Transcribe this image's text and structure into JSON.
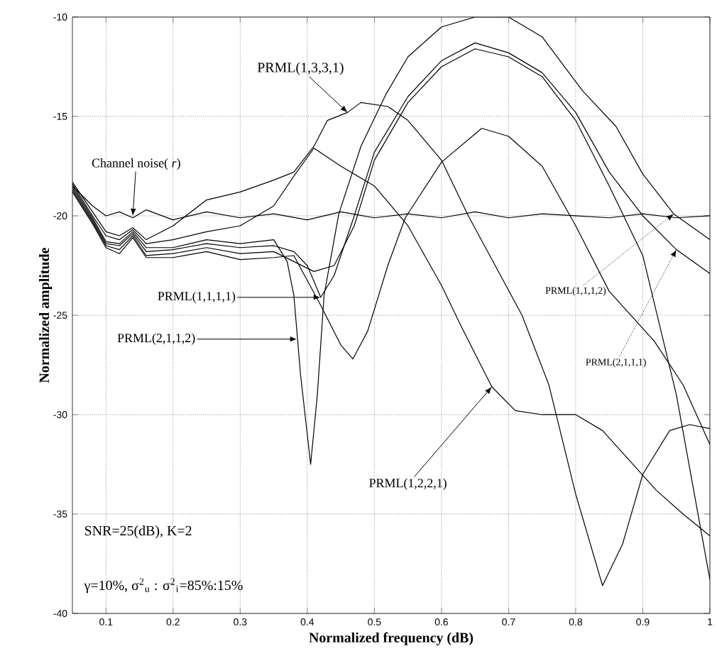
{
  "chart_data": {
    "type": "line",
    "xlabel": "Normalized frequency (dB)",
    "ylabel": "Normalized amplitude",
    "xlim": [
      0.05,
      1
    ],
    "ylim": [
      -40,
      -10
    ],
    "xticks": [
      0.1,
      0.2,
      0.3,
      0.4,
      0.5,
      0.6,
      0.7,
      0.8,
      0.9,
      1
    ],
    "yticks": [
      -40,
      -35,
      -30,
      -25,
      -20,
      -15,
      -10
    ],
    "grid": true,
    "series": [
      {
        "color": "#000000",
        "x": [
          0.05,
          0.08,
          0.1,
          0.12,
          0.14,
          0.16,
          0.2,
          0.25,
          0.3,
          0.35,
          0.4,
          0.45,
          0.5,
          0.55,
          0.6,
          0.65,
          0.7,
          0.75,
          0.8,
          0.85,
          0.9,
          0.95,
          1.0
        ],
        "values": [
          -18.5,
          -19.5,
          -20,
          -19.8,
          -20.1,
          -19.7,
          -20.2,
          -19.8,
          -20.1,
          -19.9,
          -20.2,
          -19.8,
          -20.1,
          -19.9,
          -20.1,
          -19.8,
          -20.1,
          -19.9,
          -20,
          -20.1,
          -19.9,
          -20.1,
          -20
        ]
      },
      {
        "color": "#000000",
        "x": [
          0.05,
          0.08,
          0.1,
          0.12,
          0.14,
          0.16,
          0.2,
          0.25,
          0.3,
          0.35,
          0.38,
          0.41,
          0.43,
          0.46,
          0.48,
          0.52,
          0.55,
          0.6,
          0.64,
          0.68,
          0.72,
          0.76,
          0.8,
          0.84,
          0.87,
          0.9,
          0.94,
          0.97,
          1.0
        ],
        "values": [
          -18.3,
          -19.8,
          -20.8,
          -21,
          -20.6,
          -21.2,
          -20.5,
          -19.2,
          -18.8,
          -18.2,
          -17.8,
          -16.5,
          -15.2,
          -14.8,
          -14.3,
          -14.5,
          -15.2,
          -17.2,
          -20,
          -22.5,
          -25,
          -28.5,
          -34,
          -38.6,
          -36.5,
          -33,
          -30.8,
          -30.5,
          -30.7
        ]
      },
      {
        "color": "#000000",
        "x": [
          0.05,
          0.08,
          0.1,
          0.12,
          0.14,
          0.16,
          0.2,
          0.25,
          0.3,
          0.35,
          0.38,
          0.41,
          0.45,
          0.5,
          0.55,
          0.6,
          0.63,
          0.675,
          0.71,
          0.75,
          0.8,
          0.84,
          0.88,
          0.92,
          0.96,
          1.0
        ],
        "values": [
          -18.4,
          -20,
          -21,
          -21.2,
          -20.7,
          -21.4,
          -21.2,
          -20.8,
          -20.5,
          -19.5,
          -18,
          -16.6,
          -17.5,
          -18.5,
          -20.5,
          -23.5,
          -25.6,
          -28.6,
          -29.8,
          -30,
          -30,
          -30.8,
          -32.3,
          -33.8,
          -35,
          -36.1
        ]
      },
      {
        "color": "#000000",
        "x": [
          0.05,
          0.08,
          0.1,
          0.12,
          0.14,
          0.16,
          0.2,
          0.25,
          0.3,
          0.35,
          0.37,
          0.38,
          0.39,
          0.405,
          0.415,
          0.425,
          0.447,
          0.48,
          0.517,
          0.55,
          0.6,
          0.65,
          0.7,
          0.75,
          0.81,
          0.86,
          0.9,
          0.946,
          1.0
        ],
        "values": [
          -18.5,
          -20.1,
          -21.3,
          -21.4,
          -20.8,
          -21.6,
          -21.6,
          -21.2,
          -21.4,
          -21.2,
          -22.3,
          -24,
          -28,
          -32.5,
          -29,
          -24,
          -19.9,
          -16.5,
          -13.9,
          -12,
          -10.5,
          -10,
          -10,
          -11,
          -13.7,
          -15.5,
          -17.9,
          -19.9,
          -21.2
        ]
      },
      {
        "color": "#000000",
        "x": [
          0.05,
          0.08,
          0.1,
          0.12,
          0.14,
          0.16,
          0.2,
          0.25,
          0.3,
          0.35,
          0.38,
          0.4,
          0.42,
          0.44,
          0.47,
          0.5,
          0.55,
          0.6,
          0.65,
          0.7,
          0.75,
          0.8,
          0.85,
          0.9,
          0.95,
          1.0
        ],
        "values": [
          -18.6,
          -20.2,
          -21.4,
          -21.5,
          -20.9,
          -21.8,
          -21.7,
          -21.4,
          -21.6,
          -21.5,
          -21.8,
          -22.5,
          -24.1,
          -23,
          -20,
          -16.8,
          -14,
          -12.2,
          -11.3,
          -11.8,
          -12.8,
          -14.8,
          -17.8,
          -20,
          -21.7,
          -22.9
        ]
      },
      {
        "color": "#000000",
        "x": [
          0.05,
          0.08,
          0.1,
          0.12,
          0.14,
          0.16,
          0.2,
          0.25,
          0.3,
          0.35,
          0.38,
          0.41,
          0.44,
          0.47,
          0.5,
          0.55,
          0.6,
          0.65,
          0.7,
          0.75,
          0.8,
          0.85,
          0.9,
          0.95,
          1.0
        ],
        "values": [
          -18.7,
          -20.3,
          -21.5,
          -21.7,
          -21,
          -22,
          -21.9,
          -21.6,
          -21.9,
          -21.8,
          -22.3,
          -22.8,
          -22.5,
          -20.5,
          -17.2,
          -14.3,
          -12.5,
          -11.6,
          -12,
          -13,
          -15.2,
          -18.5,
          -22,
          -29,
          -38.3
        ]
      },
      {
        "color": "#000000",
        "x": [
          0.05,
          0.08,
          0.1,
          0.12,
          0.14,
          0.16,
          0.2,
          0.25,
          0.3,
          0.35,
          0.38,
          0.42,
          0.45,
          0.468,
          0.49,
          0.52,
          0.546,
          0.6,
          0.66,
          0.7,
          0.75,
          0.8,
          0.85,
          0.917,
          0.96,
          1.0
        ],
        "values": [
          -18.8,
          -20.4,
          -21.6,
          -21.9,
          -21.1,
          -22.1,
          -22.1,
          -21.8,
          -22.2,
          -22.1,
          -22,
          -24.5,
          -26.5,
          -27.2,
          -25.8,
          -22.5,
          -20.1,
          -17.3,
          -15.6,
          -16,
          -17.5,
          -20.5,
          -23.8,
          -26.3,
          -28.5,
          -31.5
        ]
      }
    ],
    "annotations": [
      {
        "text": "PRML(1,3,3,1)",
        "x": 0.46,
        "y": -14.8
      },
      {
        "text": "Channel noise( *r*)",
        "x": 0.14,
        "y": -20
      },
      {
        "text": "PRML(1,1,1,1)",
        "x": 0.42,
        "y": -24.1
      },
      {
        "text": "PRML(2,1,1,2)",
        "x": 0.385,
        "y": -26.2
      },
      {
        "text": "PRML(1,2,2,1)",
        "x": 0.675,
        "y": -28.6
      },
      {
        "text": "PRML(1,1,1,2)",
        "x": 0.946,
        "y": -19.9
      },
      {
        "text": "PRML(2,1,1,1)",
        "x": 0.95,
        "y": -21.7
      },
      "SNR=25(dB), K=2",
      "γ=10%, σ$^{2}$$_{u}$ : σ$^{2}$$_{i}$=85%:15%"
    ]
  }
}
